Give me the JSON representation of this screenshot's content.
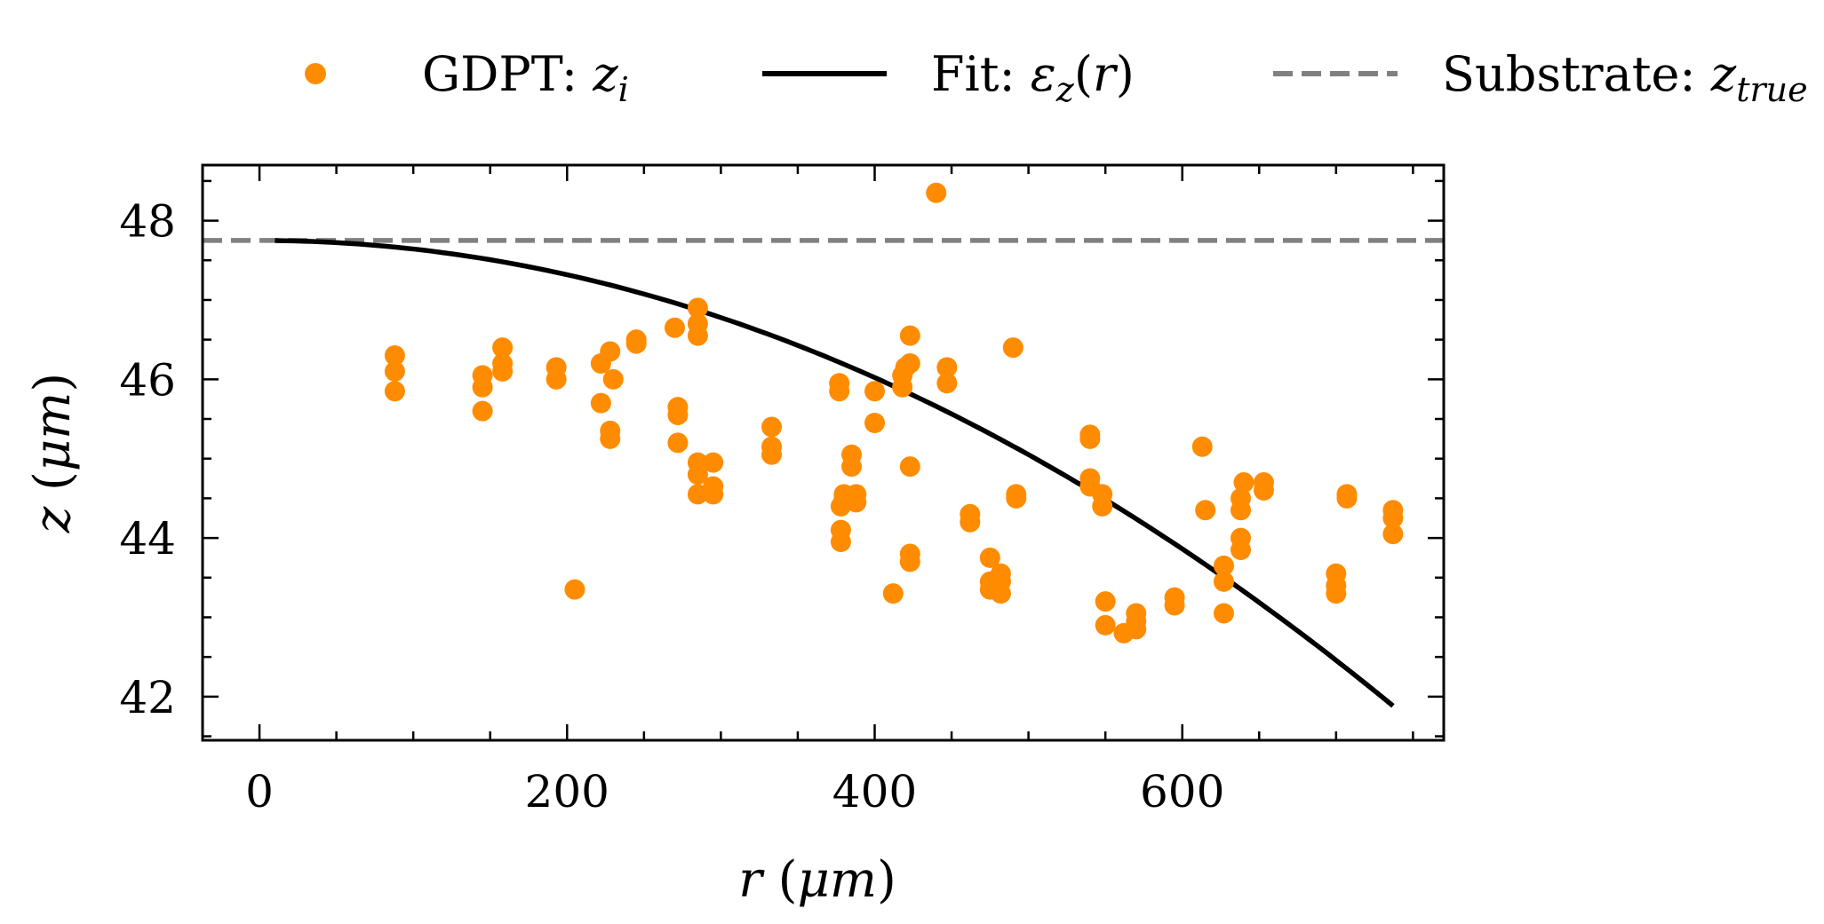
{
  "chart_data": {
    "type": "scatter",
    "xlabel": "r (μm)",
    "ylabel": "z (μm)",
    "xlim": [
      -37,
      770
    ],
    "ylim": [
      41.45,
      48.7
    ],
    "xticks": [
      0,
      200,
      400,
      600
    ],
    "yticks": [
      42,
      44,
      46,
      48
    ],
    "x_minor_step": 50,
    "y_minor_step": 0.5,
    "grid": false,
    "legend_position": "top, outside plot",
    "series": [
      {
        "name": "GDPT: z_i",
        "type": "scatter",
        "color": "#ff8c00",
        "points": [
          [
            88,
            46.3
          ],
          [
            88,
            46.1
          ],
          [
            88,
            45.85
          ],
          [
            145,
            46.05
          ],
          [
            145,
            45.9
          ],
          [
            145,
            45.6
          ],
          [
            158,
            46.4
          ],
          [
            158,
            46.2
          ],
          [
            158,
            46.1
          ],
          [
            193,
            46.15
          ],
          [
            193,
            46.0
          ],
          [
            205,
            43.35
          ],
          [
            222,
            46.2
          ],
          [
            222,
            45.7
          ],
          [
            228,
            46.35
          ],
          [
            228,
            45.35
          ],
          [
            228,
            45.25
          ],
          [
            230,
            46.0
          ],
          [
            245,
            46.5
          ],
          [
            245,
            46.45
          ],
          [
            270,
            46.65
          ],
          [
            272,
            45.65
          ],
          [
            272,
            45.55
          ],
          [
            272,
            45.2
          ],
          [
            285,
            46.9
          ],
          [
            285,
            46.7
          ],
          [
            285,
            46.55
          ],
          [
            285,
            44.95
          ],
          [
            285,
            44.8
          ],
          [
            285,
            44.55
          ],
          [
            295,
            44.95
          ],
          [
            295,
            44.65
          ],
          [
            295,
            44.55
          ],
          [
            333,
            45.4
          ],
          [
            333,
            45.15
          ],
          [
            333,
            45.05
          ],
          [
            377,
            45.95
          ],
          [
            377,
            45.85
          ],
          [
            378,
            44.4
          ],
          [
            378,
            44.1
          ],
          [
            378,
            43.95
          ],
          [
            380,
            44.55
          ],
          [
            380,
            44.5
          ],
          [
            385,
            45.05
          ],
          [
            385,
            44.9
          ],
          [
            388,
            44.55
          ],
          [
            388,
            44.45
          ],
          [
            400,
            45.85
          ],
          [
            400,
            45.45
          ],
          [
            412,
            43.3
          ],
          [
            418,
            46.05
          ],
          [
            418,
            45.9
          ],
          [
            420,
            46.15
          ],
          [
            423,
            46.55
          ],
          [
            423,
            46.2
          ],
          [
            423,
            44.9
          ],
          [
            423,
            43.8
          ],
          [
            423,
            43.7
          ],
          [
            440,
            48.35
          ],
          [
            447,
            46.15
          ],
          [
            447,
            45.95
          ],
          [
            462,
            44.3
          ],
          [
            462,
            44.2
          ],
          [
            475,
            43.75
          ],
          [
            475,
            43.45
          ],
          [
            475,
            43.35
          ],
          [
            482,
            43.55
          ],
          [
            482,
            43.45
          ],
          [
            482,
            43.3
          ],
          [
            490,
            46.4
          ],
          [
            492,
            44.55
          ],
          [
            492,
            44.5
          ],
          [
            540,
            45.3
          ],
          [
            540,
            45.25
          ],
          [
            540,
            44.75
          ],
          [
            540,
            44.65
          ],
          [
            548,
            44.55
          ],
          [
            548,
            44.4
          ],
          [
            550,
            43.2
          ],
          [
            550,
            42.9
          ],
          [
            562,
            42.8
          ],
          [
            570,
            43.05
          ],
          [
            570,
            42.95
          ],
          [
            570,
            42.85
          ],
          [
            595,
            43.25
          ],
          [
            595,
            43.15
          ],
          [
            613,
            45.15
          ],
          [
            615,
            44.35
          ],
          [
            627,
            43.65
          ],
          [
            627,
            43.45
          ],
          [
            627,
            43.05
          ],
          [
            638,
            44.5
          ],
          [
            638,
            44.35
          ],
          [
            638,
            44.0
          ],
          [
            638,
            43.85
          ],
          [
            640,
            44.7
          ],
          [
            653,
            44.7
          ],
          [
            653,
            44.6
          ],
          [
            700,
            43.55
          ],
          [
            700,
            43.4
          ],
          [
            700,
            43.3
          ],
          [
            707,
            44.55
          ],
          [
            707,
            44.5
          ],
          [
            737,
            44.35
          ],
          [
            737,
            44.25
          ],
          [
            737,
            44.05
          ]
        ]
      },
      {
        "name": "Fit: ε_z(r)",
        "type": "line",
        "color": "#000000",
        "model": "quadratic",
        "a": 47.75,
        "b": -1.08e-05,
        "x_range": [
          10,
          737
        ]
      },
      {
        "name": "Substrate: z_true",
        "type": "line",
        "style": "dashed",
        "color": "#808080",
        "y": 47.75
      }
    ]
  }
}
